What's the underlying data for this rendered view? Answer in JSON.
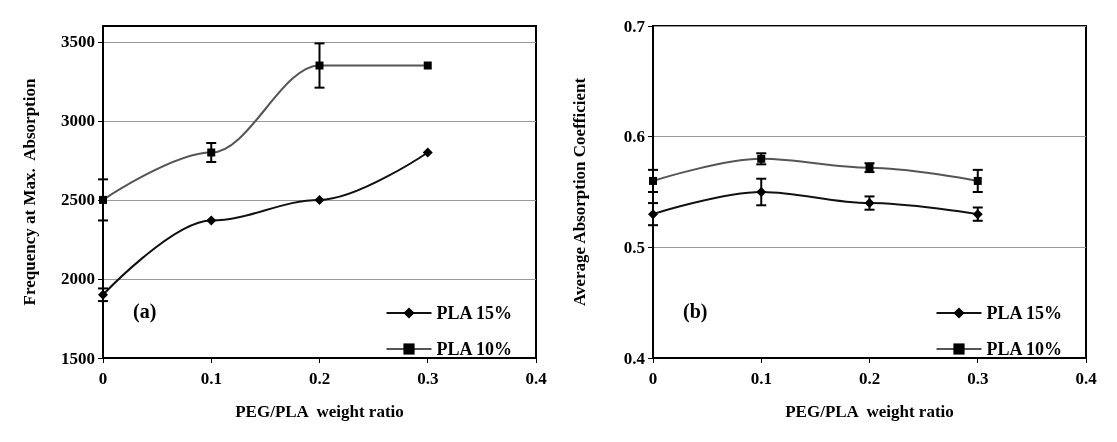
{
  "chart_data": [
    {
      "type": "line",
      "xlabel": "PEG/PLA  weight ratio",
      "ylabel": "Frequency at Max.  Absorption",
      "annotations": [
        "(a)"
      ],
      "xlim": [
        0,
        0.4
      ],
      "xticks": [
        0,
        0.1,
        0.2,
        0.3,
        0.4
      ],
      "ylim": [
        1500,
        3600
      ],
      "yticks": [
        1500,
        2000,
        2500,
        3000,
        3500
      ],
      "grid": "y",
      "legend": "bottom right",
      "x": [
        0,
        0.1,
        0.2,
        0.3
      ],
      "series": [
        {
          "name": "PLA 15%",
          "color": "#111111",
          "marker": "diamond",
          "values": [
            1900,
            2370,
            2500,
            2800
          ],
          "errors": [
            40,
            null,
            null,
            null
          ]
        },
        {
          "name": "PLA 10%",
          "color": "#555555",
          "marker": "square",
          "values": [
            2500,
            2800,
            3350,
            3350
          ],
          "errors": [
            130,
            60,
            140,
            null
          ]
        }
      ]
    },
    {
      "type": "line",
      "xlabel": "PEG/PLA  weight ratio",
      "ylabel": "Average Absorption Coefficient",
      "annotations": [
        "(b)"
      ],
      "xlim": [
        0,
        0.4
      ],
      "xticks": [
        0,
        0.1,
        0.2,
        0.3,
        0.4
      ],
      "ylim": [
        0.4,
        0.7
      ],
      "yticks": [
        0.4,
        0.5,
        0.6,
        0.7
      ],
      "grid": "y",
      "legend": "bottom right",
      "x": [
        0,
        0.1,
        0.2,
        0.3
      ],
      "series": [
        {
          "name": "PLA 15%",
          "color": "#111111",
          "marker": "diamond",
          "values": [
            0.53,
            0.55,
            0.54,
            0.53
          ],
          "errors": [
            0.01,
            0.012,
            0.006,
            0.006
          ]
        },
        {
          "name": "PLA 10%",
          "color": "#555555",
          "marker": "square",
          "values": [
            0.56,
            0.58,
            0.572,
            0.56
          ],
          "errors": [
            0.01,
            0.005,
            0.004,
            0.01
          ]
        }
      ]
    }
  ]
}
